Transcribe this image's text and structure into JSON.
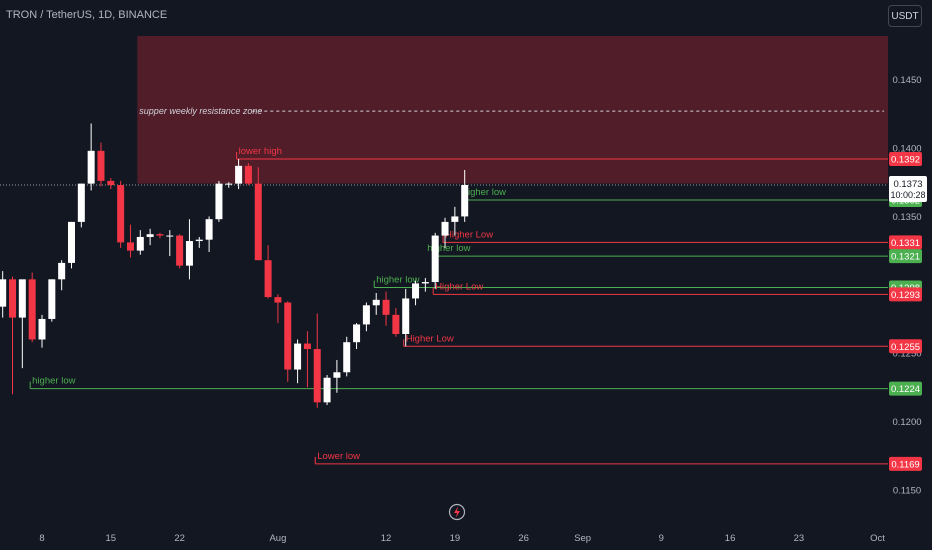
{
  "header": {
    "title": "TRON / TetherUS, 1D, BINANCE",
    "currency_button": "USDT"
  },
  "colors": {
    "background": "#131722",
    "up_candle": "#ffffff",
    "down_candle": "#f23645",
    "support_line": "#4caf50",
    "resistance_line": "#f23645",
    "zone_fill": "#5d1f2a",
    "axis_text": "#b2b5be"
  },
  "chart_data": {
    "type": "candlestick",
    "title": "TRON / TetherUS, 1D, BINANCE",
    "ylim": [
      0.1125,
      0.1482
    ],
    "y_ticks": [
      "0.1450",
      "0.1400",
      "0.1350",
      "0.1300",
      "0.1250",
      "0.1200",
      "0.1150"
    ],
    "x_ticks": [
      {
        "label": "8",
        "date": "2024-07-08"
      },
      {
        "label": "15",
        "date": "2024-07-15"
      },
      {
        "label": "22",
        "date": "2024-07-22"
      },
      {
        "label": "Aug",
        "date": "2024-08-01"
      },
      {
        "label": "12",
        "date": "2024-08-12"
      },
      {
        "label": "19",
        "date": "2024-08-19"
      },
      {
        "label": "26",
        "date": "2024-08-26"
      },
      {
        "label": "Sep",
        "date": "2024-09-01"
      },
      {
        "label": "9",
        "date": "2024-09-09"
      },
      {
        "label": "16",
        "date": "2024-09-16"
      },
      {
        "label": "23",
        "date": "2024-09-23"
      },
      {
        "label": "Oct",
        "date": "2024-10-01"
      }
    ],
    "candles": [
      {
        "date": "2024-07-03",
        "o": 0.1297,
        "h": 0.1302,
        "l": 0.1281,
        "c": 0.1284
      },
      {
        "date": "2024-07-04",
        "o": 0.1284,
        "h": 0.131,
        "l": 0.1276,
        "c": 0.1304
      },
      {
        "date": "2024-07-05",
        "o": 0.1304,
        "h": 0.1306,
        "l": 0.122,
        "c": 0.1276
      },
      {
        "date": "2024-07-06",
        "o": 0.1276,
        "h": 0.1301,
        "l": 0.1239,
        "c": 0.1304
      },
      {
        "date": "2024-07-07",
        "o": 0.1304,
        "h": 0.1309,
        "l": 0.1258,
        "c": 0.126
      },
      {
        "date": "2024-07-08",
        "o": 0.126,
        "h": 0.1278,
        "l": 0.1254,
        "c": 0.1275
      },
      {
        "date": "2024-07-09",
        "o": 0.1275,
        "h": 0.1304,
        "l": 0.1273,
        "c": 0.1304
      },
      {
        "date": "2024-07-10",
        "o": 0.1304,
        "h": 0.1318,
        "l": 0.1296,
        "c": 0.1316
      },
      {
        "date": "2024-07-11",
        "o": 0.1316,
        "h": 0.1346,
        "l": 0.1312,
        "c": 0.1346
      },
      {
        "date": "2024-07-12",
        "o": 0.1346,
        "h": 0.1374,
        "l": 0.1342,
        "c": 0.1374
      },
      {
        "date": "2024-07-13",
        "o": 0.1374,
        "h": 0.1418,
        "l": 0.1369,
        "c": 0.1398
      },
      {
        "date": "2024-07-14",
        "o": 0.1398,
        "h": 0.1404,
        "l": 0.1372,
        "c": 0.1376
      },
      {
        "date": "2024-07-15",
        "o": 0.1376,
        "h": 0.1378,
        "l": 0.137,
        "c": 0.1373
      },
      {
        "date": "2024-07-16",
        "o": 0.1373,
        "h": 0.1376,
        "l": 0.1327,
        "c": 0.1331
      },
      {
        "date": "2024-07-17",
        "o": 0.1331,
        "h": 0.1344,
        "l": 0.132,
        "c": 0.1325
      },
      {
        "date": "2024-07-18",
        "o": 0.1325,
        "h": 0.134,
        "l": 0.1322,
        "c": 0.1335
      },
      {
        "date": "2024-07-19",
        "o": 0.1335,
        "h": 0.1341,
        "l": 0.1329,
        "c": 0.1337
      },
      {
        "date": "2024-07-20",
        "o": 0.1337,
        "h": 0.1338,
        "l": 0.1334,
        "c": 0.1336
      },
      {
        "date": "2024-07-21",
        "o": 0.1336,
        "h": 0.134,
        "l": 0.1321,
        "c": 0.1336
      },
      {
        "date": "2024-07-22",
        "o": 0.1336,
        "h": 0.1337,
        "l": 0.1312,
        "c": 0.1314
      },
      {
        "date": "2024-07-23",
        "o": 0.1314,
        "h": 0.1348,
        "l": 0.1304,
        "c": 0.1332
      },
      {
        "date": "2024-07-24",
        "o": 0.1332,
        "h": 0.1335,
        "l": 0.1327,
        "c": 0.1333
      },
      {
        "date": "2024-07-25",
        "o": 0.1333,
        "h": 0.135,
        "l": 0.1324,
        "c": 0.1348
      },
      {
        "date": "2024-07-26",
        "o": 0.1348,
        "h": 0.1376,
        "l": 0.1346,
        "c": 0.1374
      },
      {
        "date": "2024-07-27",
        "o": 0.1374,
        "h": 0.1375,
        "l": 0.1371,
        "c": 0.1374
      },
      {
        "date": "2024-07-28",
        "o": 0.1374,
        "h": 0.1392,
        "l": 0.137,
        "c": 0.1387
      },
      {
        "date": "2024-07-29",
        "o": 0.1387,
        "h": 0.1389,
        "l": 0.1373,
        "c": 0.1374
      },
      {
        "date": "2024-07-30",
        "o": 0.1374,
        "h": 0.1386,
        "l": 0.1318,
        "c": 0.1318
      },
      {
        "date": "2024-07-31",
        "o": 0.1318,
        "h": 0.1329,
        "l": 0.129,
        "c": 0.1291
      },
      {
        "date": "2024-08-01",
        "o": 0.1291,
        "h": 0.1293,
        "l": 0.1272,
        "c": 0.1287
      },
      {
        "date": "2024-08-02",
        "o": 0.1287,
        "h": 0.1288,
        "l": 0.1229,
        "c": 0.1238
      },
      {
        "date": "2024-08-03",
        "o": 0.1238,
        "h": 0.126,
        "l": 0.1228,
        "c": 0.1257
      },
      {
        "date": "2024-08-04",
        "o": 0.1257,
        "h": 0.1266,
        "l": 0.1225,
        "c": 0.1253
      },
      {
        "date": "2024-08-05",
        "o": 0.1253,
        "h": 0.1279,
        "l": 0.121,
        "c": 0.1214
      },
      {
        "date": "2024-08-06",
        "o": 0.1214,
        "h": 0.1234,
        "l": 0.1212,
        "c": 0.1232
      },
      {
        "date": "2024-08-07",
        "o": 0.1232,
        "h": 0.1245,
        "l": 0.1221,
        "c": 0.1236
      },
      {
        "date": "2024-08-08",
        "o": 0.1236,
        "h": 0.1262,
        "l": 0.1233,
        "c": 0.1258
      },
      {
        "date": "2024-08-09",
        "o": 0.1258,
        "h": 0.1272,
        "l": 0.1253,
        "c": 0.1271
      },
      {
        "date": "2024-08-10",
        "o": 0.1271,
        "h": 0.1287,
        "l": 0.1266,
        "c": 0.1285
      },
      {
        "date": "2024-08-11",
        "o": 0.1285,
        "h": 0.1294,
        "l": 0.1278,
        "c": 0.1289
      },
      {
        "date": "2024-08-12",
        "o": 0.1289,
        "h": 0.1295,
        "l": 0.127,
        "c": 0.1278
      },
      {
        "date": "2024-08-13",
        "o": 0.1278,
        "h": 0.1283,
        "l": 0.1262,
        "c": 0.1264
      },
      {
        "date": "2024-08-14",
        "o": 0.1264,
        "h": 0.1297,
        "l": 0.1255,
        "c": 0.129
      },
      {
        "date": "2024-08-15",
        "o": 0.129,
        "h": 0.1303,
        "l": 0.1285,
        "c": 0.1301
      },
      {
        "date": "2024-08-16",
        "o": 0.1301,
        "h": 0.1305,
        "l": 0.1295,
        "c": 0.1302
      },
      {
        "date": "2024-08-17",
        "o": 0.1302,
        "h": 0.1338,
        "l": 0.1297,
        "c": 0.1336
      },
      {
        "date": "2024-08-18",
        "o": 0.1336,
        "h": 0.1349,
        "l": 0.1327,
        "c": 0.1346
      },
      {
        "date": "2024-08-19",
        "o": 0.1346,
        "h": 0.1357,
        "l": 0.1336,
        "c": 0.135
      },
      {
        "date": "2024-08-20",
        "o": 0.135,
        "h": 0.1384,
        "l": 0.1346,
        "c": 0.1373
      }
    ],
    "resistance_zone": {
      "low": 0.1374,
      "high": 0.1482,
      "from": "2024-07-18",
      "label": "supper weekly resistance zone",
      "midline": 0.1427
    },
    "levels": [
      {
        "value": 0.1392,
        "type": "resistance",
        "label": "lower high",
        "from": "2024-07-28",
        "price_label": "0.1392"
      },
      {
        "value": 0.1362,
        "type": "support",
        "label": "higher low",
        "from": "2024-08-20",
        "price_label": "0.1362"
      },
      {
        "value": 0.1331,
        "type": "resistance",
        "label": "Higher Low",
        "from": "2024-08-18",
        "price_label": "0.1331"
      },
      {
        "value": 0.1321,
        "type": "support",
        "label": "higher low",
        "from": "2024-08-17",
        "price_label": "0.1321"
      },
      {
        "value": 0.1298,
        "type": "support",
        "label": "higher low",
        "from": "2024-08-11",
        "price_label": "0.1298"
      },
      {
        "value": 0.1293,
        "type": "resistance",
        "label": "Higher Low",
        "from": "2024-08-17",
        "price_label": "0.1293"
      },
      {
        "value": 0.1255,
        "type": "resistance",
        "label": "Higher Low",
        "from": "2024-08-14",
        "price_label": "0.1255"
      },
      {
        "value": 0.1224,
        "type": "support",
        "label": "higher low",
        "from": "2024-07-07",
        "price_label": "0.1224"
      },
      {
        "value": 0.1169,
        "type": "resistance",
        "label": "Lower low",
        "from": "2024-08-05",
        "price_label": "0.1169"
      }
    ],
    "current_price": {
      "value": 0.1373,
      "price_label": "0.1373",
      "countdown": "10:00:28"
    }
  }
}
